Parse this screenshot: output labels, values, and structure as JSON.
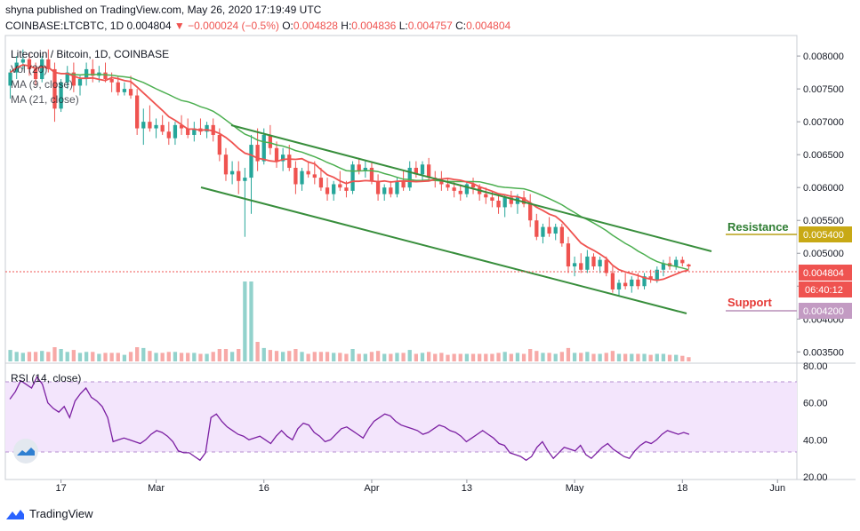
{
  "header": {
    "published": "shyna published on TradingView.com, May 26, 2020 17:19:49 UTC",
    "symbol": "COINBASE:LTCBTC, 1D",
    "price": "0.004804",
    "change": "−0.000024 (−0.5%)",
    "o_label": "O:",
    "o_value": "0.004828",
    "h_label": "H:",
    "h_value": "0.004836",
    "l_label": "L:",
    "l_value": "0.004757",
    "c_label": "C:",
    "c_value": "0.004804"
  },
  "legend": {
    "title": "Litecoin / Bitcoin, 1D, COINBASE",
    "vol": "Vol (20)",
    "ma9": "MA (9, close)",
    "ma21": "MA (21, close)"
  },
  "annotations": {
    "resistance": "Resistance",
    "support": "Support",
    "resistance_value": "0.005400",
    "support_value": "0.004200",
    "last_price": "0.004804",
    "countdown": "06:40:12"
  },
  "rsi_label": "RSI (14, close)",
  "footer": {
    "brand": "TradingView"
  },
  "colors": {
    "up": "#26a69a",
    "down": "#ef5350",
    "ma9": "#ef5350",
    "ma21": "#4caf50",
    "channel": "#388e3c",
    "resistance": "#b8a017",
    "support": "#b98fb9",
    "rsi_band": "#f3e5fc",
    "rsi_line": "#7b1fa2"
  },
  "chart_data": [
    {
      "type": "candlestick",
      "title": "Litecoin / Bitcoin, 1D, COINBASE",
      "ylim": [
        0.00345,
        0.00815
      ],
      "y_ticks": [
        "0.008000",
        "0.007500",
        "0.007000",
        "0.006500",
        "0.006000",
        "0.005500",
        "0.005000",
        "0.004500",
        "0.004000",
        "0.003500"
      ],
      "x_ticks": [
        "17",
        "Mar",
        "16",
        "Apr",
        "13",
        "May",
        "18",
        "Jun"
      ],
      "series": [
        {
          "name": "Litecoin / Bitcoin",
          "ohlc": [
            [
              0.00755,
              0.0078,
              0.00735,
              0.00775
            ],
            [
              0.00775,
              0.008,
              0.00765,
              0.0079
            ],
            [
              0.0079,
              0.0081,
              0.0078,
              0.00795
            ],
            [
              0.00795,
              0.00805,
              0.0077,
              0.0078
            ],
            [
              0.0078,
              0.0079,
              0.00755,
              0.00765
            ],
            [
              0.00765,
              0.008,
              0.0076,
              0.00795
            ],
            [
              0.00795,
              0.0081,
              0.00775,
              0.0078
            ],
            [
              0.0078,
              0.0079,
              0.007,
              0.0072
            ],
            [
              0.0072,
              0.00765,
              0.00715,
              0.0076
            ],
            [
              0.0076,
              0.00785,
              0.0075,
              0.00775
            ],
            [
              0.00775,
              0.0079,
              0.00745,
              0.00755
            ],
            [
              0.00755,
              0.0077,
              0.0074,
              0.00765
            ],
            [
              0.00765,
              0.0079,
              0.00755,
              0.0078
            ],
            [
              0.0078,
              0.00795,
              0.0076,
              0.0077
            ],
            [
              0.0077,
              0.00785,
              0.0076,
              0.00775
            ],
            [
              0.00775,
              0.0079,
              0.0076,
              0.00765
            ],
            [
              0.00765,
              0.00775,
              0.00745,
              0.0076
            ],
            [
              0.0076,
              0.0077,
              0.0074,
              0.00745
            ],
            [
              0.00745,
              0.0076,
              0.0074,
              0.0075
            ],
            [
              0.0075,
              0.0077,
              0.00735,
              0.0074
            ],
            [
              0.0074,
              0.0075,
              0.0068,
              0.0069
            ],
            [
              0.0069,
              0.0072,
              0.00665,
              0.007
            ],
            [
              0.007,
              0.00725,
              0.00685,
              0.0069
            ],
            [
              0.0069,
              0.00705,
              0.00675,
              0.00695
            ],
            [
              0.00695,
              0.0071,
              0.0068,
              0.00685
            ],
            [
              0.00685,
              0.007,
              0.00665,
              0.00675
            ],
            [
              0.00675,
              0.007,
              0.00665,
              0.00695
            ],
            [
              0.00695,
              0.0071,
              0.0068,
              0.0069
            ],
            [
              0.0069,
              0.00705,
              0.00675,
              0.0068
            ],
            [
              0.0068,
              0.007,
              0.0067,
              0.0069
            ],
            [
              0.0069,
              0.00705,
              0.0068,
              0.00685
            ],
            [
              0.00685,
              0.007,
              0.00675,
              0.00695
            ],
            [
              0.00695,
              0.00705,
              0.0067,
              0.0068
            ],
            [
              0.0068,
              0.0069,
              0.0064,
              0.0065
            ],
            [
              0.0065,
              0.0066,
              0.0061,
              0.0062
            ],
            [
              0.0062,
              0.0064,
              0.00605,
              0.00625
            ],
            [
              0.00625,
              0.0064,
              0.0059,
              0.0061
            ],
            [
              0.0061,
              0.0063,
              0.00525,
              0.00615
            ],
            [
              0.00615,
              0.0068,
              0.0056,
              0.00665
            ],
            [
              0.00665,
              0.0069,
              0.00625,
              0.0064
            ],
            [
              0.0064,
              0.0069,
              0.00635,
              0.0068
            ],
            [
              0.0068,
              0.00695,
              0.0065,
              0.0066
            ],
            [
              0.0066,
              0.0067,
              0.0063,
              0.0064
            ],
            [
              0.0064,
              0.0066,
              0.00625,
              0.0065
            ],
            [
              0.0065,
              0.00665,
              0.00625,
              0.0063
            ],
            [
              0.0063,
              0.0064,
              0.0059,
              0.00605
            ],
            [
              0.00605,
              0.0063,
              0.00595,
              0.00625
            ],
            [
              0.00625,
              0.0064,
              0.00615,
              0.0062
            ],
            [
              0.0062,
              0.0064,
              0.00605,
              0.00615
            ],
            [
              0.00615,
              0.0063,
              0.00595,
              0.006
            ],
            [
              0.006,
              0.00615,
              0.0058,
              0.0059
            ],
            [
              0.0059,
              0.0061,
              0.0058,
              0.00605
            ],
            [
              0.00605,
              0.00625,
              0.00595,
              0.006
            ],
            [
              0.006,
              0.0061,
              0.00585,
              0.00595
            ],
            [
              0.00595,
              0.0064,
              0.0059,
              0.00635
            ],
            [
              0.00635,
              0.00645,
              0.0062,
              0.00625
            ],
            [
              0.00625,
              0.0064,
              0.00615,
              0.0063
            ],
            [
              0.0063,
              0.0064,
              0.00605,
              0.0061
            ],
            [
              0.0061,
              0.0062,
              0.0058,
              0.0059
            ],
            [
              0.0059,
              0.00605,
              0.0058,
              0.006
            ],
            [
              0.006,
              0.0061,
              0.00585,
              0.0059
            ],
            [
              0.0059,
              0.00615,
              0.00585,
              0.0061
            ],
            [
              0.0061,
              0.00625,
              0.00595,
              0.006
            ],
            [
              0.006,
              0.0064,
              0.00595,
              0.0063
            ],
            [
              0.0063,
              0.0064,
              0.00615,
              0.0062
            ],
            [
              0.0062,
              0.0064,
              0.0061,
              0.00635
            ],
            [
              0.00635,
              0.00645,
              0.0061,
              0.00615
            ],
            [
              0.00615,
              0.00625,
              0.006,
              0.0061
            ],
            [
              0.0061,
              0.00625,
              0.00595,
              0.00605
            ],
            [
              0.00605,
              0.00615,
              0.00595,
              0.006
            ],
            [
              0.006,
              0.0061,
              0.00585,
              0.00595
            ],
            [
              0.00595,
              0.00605,
              0.0058,
              0.0059
            ],
            [
              0.0059,
              0.0061,
              0.00585,
              0.00605
            ],
            [
              0.00605,
              0.00615,
              0.0059,
              0.006
            ],
            [
              0.006,
              0.00605,
              0.0058,
              0.0059
            ],
            [
              0.0059,
              0.006,
              0.00575,
              0.00585
            ],
            [
              0.00585,
              0.00595,
              0.0057,
              0.0058
            ],
            [
              0.0058,
              0.0059,
              0.0056,
              0.0057
            ],
            [
              0.0057,
              0.0059,
              0.00555,
              0.00585
            ],
            [
              0.00585,
              0.00595,
              0.0057,
              0.00575
            ],
            [
              0.00575,
              0.0059,
              0.0056,
              0.00585
            ],
            [
              0.00585,
              0.00595,
              0.0057,
              0.00575
            ],
            [
              0.00575,
              0.0059,
              0.0054,
              0.0055
            ],
            [
              0.0055,
              0.0056,
              0.0052,
              0.00525
            ],
            [
              0.00525,
              0.00545,
              0.00515,
              0.0054
            ],
            [
              0.0054,
              0.00555,
              0.00525,
              0.0053
            ],
            [
              0.0053,
              0.00545,
              0.0052,
              0.0054
            ],
            [
              0.0054,
              0.00545,
              0.0051,
              0.00515
            ],
            [
              0.00515,
              0.00525,
              0.0047,
              0.0048
            ],
            [
              0.0048,
              0.00495,
              0.00465,
              0.00485
            ],
            [
              0.00485,
              0.005,
              0.0047,
              0.00475
            ],
            [
              0.00475,
              0.00505,
              0.0047,
              0.00495
            ],
            [
              0.00495,
              0.005,
              0.00475,
              0.0048
            ],
            [
              0.0048,
              0.00495,
              0.0047,
              0.0049
            ],
            [
              0.0049,
              0.00495,
              0.00465,
              0.0047
            ],
            [
              0.0047,
              0.0048,
              0.0044,
              0.00445
            ],
            [
              0.00445,
              0.0046,
              0.00435,
              0.00455
            ],
            [
              0.00455,
              0.0047,
              0.00445,
              0.0045
            ],
            [
              0.0045,
              0.00465,
              0.0044,
              0.0046
            ],
            [
              0.0046,
              0.0047,
              0.00445,
              0.0045
            ],
            [
              0.0045,
              0.0047,
              0.00445,
              0.00465
            ],
            [
              0.00465,
              0.00475,
              0.00455,
              0.0046
            ],
            [
              0.0046,
              0.0048,
              0.00455,
              0.00475
            ],
            [
              0.00475,
              0.0049,
              0.00465,
              0.00485
            ],
            [
              0.00485,
              0.00495,
              0.00475,
              0.0048
            ],
            [
              0.0048,
              0.00495,
              0.00475,
              0.0049
            ],
            [
              0.0049,
              0.00495,
              0.0048,
              0.00485
            ],
            [
              0.00483,
              0.00484,
              0.00476,
              0.0048
            ]
          ]
        }
      ]
    },
    {
      "type": "line",
      "title": "RSI (14, close)",
      "ylim": [
        20,
        80
      ],
      "y_ticks": [
        "80.00",
        "60.00",
        "40.00",
        "20.00"
      ],
      "series": [
        {
          "name": "RSI (14, close)",
          "values": [
            62,
            66,
            72,
            70,
            68,
            74,
            70,
            60,
            57,
            55,
            58,
            52,
            61,
            65,
            68,
            63,
            61,
            58,
            52,
            39,
            40,
            41,
            40,
            39,
            38,
            40,
            43,
            45,
            44,
            42,
            39,
            34,
            33,
            33,
            31,
            29,
            33,
            52,
            54,
            50,
            47,
            45,
            43,
            42,
            40,
            41,
            42,
            40,
            38,
            42,
            45,
            42,
            40,
            46,
            49,
            48,
            44,
            42,
            39,
            40,
            43,
            46,
            47,
            45,
            43,
            41,
            46,
            50,
            52,
            54,
            53,
            50,
            48,
            47,
            46,
            45,
            43,
            44,
            46,
            48,
            47,
            45,
            44,
            42,
            39,
            41,
            43,
            45,
            43,
            41,
            38,
            37,
            33,
            32,
            31,
            29,
            31,
            36,
            39,
            34,
            30,
            33,
            36,
            35,
            34,
            37,
            32,
            30,
            33,
            36,
            38,
            35,
            33,
            31,
            30,
            34,
            37,
            39,
            38,
            40,
            43,
            45,
            44,
            43,
            44,
            43
          ]
        }
      ]
    }
  ]
}
